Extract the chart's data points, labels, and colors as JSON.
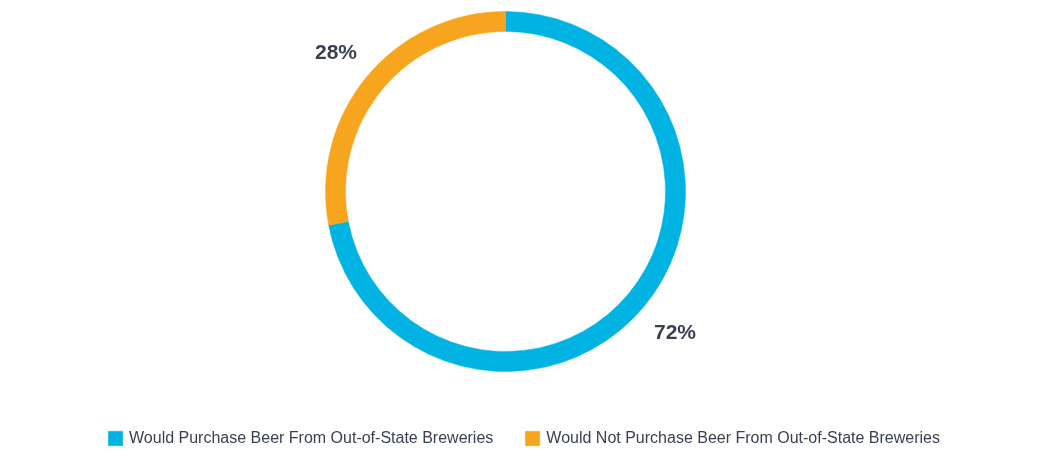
{
  "chart_data": {
    "type": "donut",
    "categories": [
      "Would Purchase Beer From Out-of-State Breweries",
      "Would Not Purchase Beer From Out-of-State Breweries"
    ],
    "values": [
      72,
      28
    ],
    "colors": [
      "#00b3e3",
      "#f7a51e"
    ],
    "value_labels": [
      "72%",
      "28%"
    ],
    "legend": "bottom"
  }
}
